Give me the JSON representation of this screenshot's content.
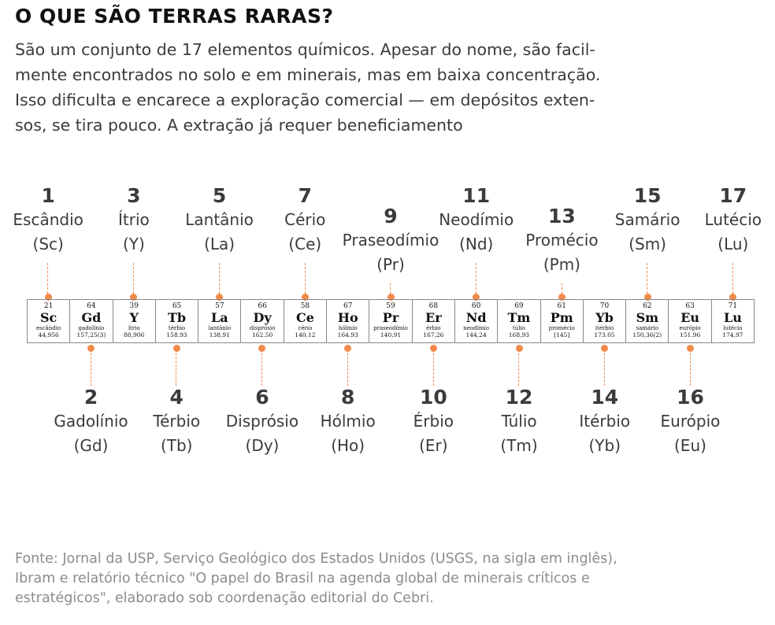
{
  "title": "O QUE SÃO TERRAS RARAS?",
  "intro_lines": [
    "São um conjunto de 17 elementos químicos. Apesar do nome, são facil-",
    "mente encontrados no solo e em minerais, mas em baixa concentração.",
    "Isso dificulta e encarece a exploração comercial — em depósitos exten-",
    "sos, se tira pouco. A extração já requer beneficiamento"
  ],
  "accent_color": "#f28a4a",
  "elements": [
    {
      "rank": "1",
      "label": "Escândio",
      "abbr": "(Sc)",
      "z": "21",
      "symbol": "Sc",
      "name": "escândio",
      "mass": "44,956"
    },
    {
      "rank": "2",
      "label": "Gadolínio",
      "abbr": "(Gd)",
      "z": "64",
      "symbol": "Gd",
      "name": "gadolínio",
      "mass": "157,25(3)"
    },
    {
      "rank": "3",
      "label": "Ítrio",
      "abbr": "(Y)",
      "z": "39",
      "symbol": "Y",
      "name": "ítrio",
      "mass": "88,906"
    },
    {
      "rank": "4",
      "label": "Térbio",
      "abbr": "(Tb)",
      "z": "65",
      "symbol": "Tb",
      "name": "térbio",
      "mass": "158.93"
    },
    {
      "rank": "5",
      "label": "Lantânio",
      "abbr": "(La)",
      "z": "57",
      "symbol": "La",
      "name": "lantânio",
      "mass": "138,91"
    },
    {
      "rank": "6",
      "label": "Disprósio",
      "abbr": "(Dy)",
      "z": "66",
      "symbol": "Dy",
      "name": "disprósio",
      "mass": "162.50"
    },
    {
      "rank": "7",
      "label": "Cério",
      "abbr": "(Ce)",
      "z": "58",
      "symbol": "Ce",
      "name": "cério",
      "mass": "140,12"
    },
    {
      "rank": "8",
      "label": "Hólmio",
      "abbr": "(Ho)",
      "z": "67",
      "symbol": "Ho",
      "name": "hólmio",
      "mass": "164.93"
    },
    {
      "rank": "9",
      "label": "Praseodímio",
      "abbr": "(Pr)",
      "z": "59",
      "symbol": "Pr",
      "name": "praseodímio",
      "mass": "140,91"
    },
    {
      "rank": "10",
      "label": "Érbio",
      "abbr": "(Er)",
      "z": "68",
      "symbol": "Er",
      "name": "érbio",
      "mass": "167,26"
    },
    {
      "rank": "11",
      "label": "Neodímio",
      "abbr": "(Nd)",
      "z": "60",
      "symbol": "Nd",
      "name": "neodímio",
      "mass": "144,24"
    },
    {
      "rank": "12",
      "label": "Túlio",
      "abbr": "(Tm)",
      "z": "69",
      "symbol": "Tm",
      "name": "túlio",
      "mass": "168,93"
    },
    {
      "rank": "13",
      "label": "Promécio",
      "abbr": "(Pm)",
      "z": "61",
      "symbol": "Pm",
      "name": "promécio",
      "mass": "[145]"
    },
    {
      "rank": "14",
      "label": "Itérbio",
      "abbr": "(Yb)",
      "z": "70",
      "symbol": "Yb",
      "name": "itérbio",
      "mass": "173.05"
    },
    {
      "rank": "15",
      "label": "Samário",
      "abbr": "(Sm)",
      "z": "62",
      "symbol": "Sm",
      "name": "samário",
      "mass": "150,36(2)"
    },
    {
      "rank": "16",
      "label": "Európio",
      "abbr": "(Eu)",
      "z": "63",
      "symbol": "Eu",
      "name": "európio",
      "mass": "151.96"
    },
    {
      "rank": "17",
      "label": "Lutécio",
      "abbr": "(Lu)",
      "z": "71",
      "symbol": "Lu",
      "name": "lutécio",
      "mass": "174,97"
    }
  ],
  "source_lines": [
    "Fonte:  Jornal da USP, Serviço Geológico dos Estados Unidos (USGS, na sigla em inglês),",
    "Ibram e relatório técnico \"O papel do Brasil  na agenda global de minerais críticos e",
    "estratégicos\", elaborado sob coordenação editorial do Cebri."
  ]
}
